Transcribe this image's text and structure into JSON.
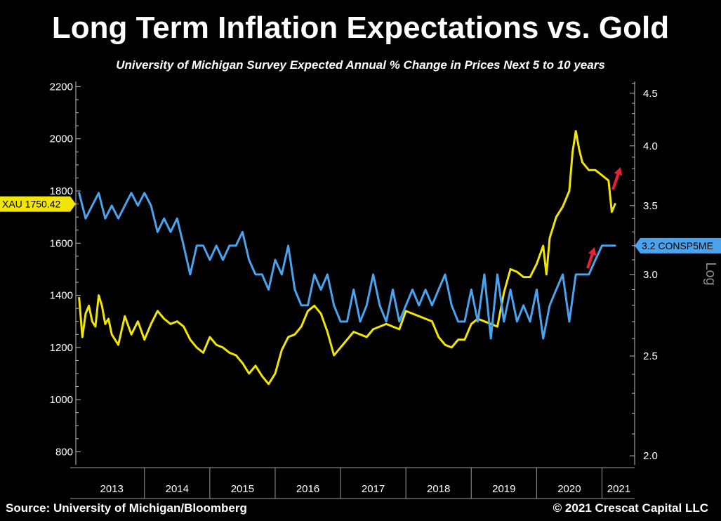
{
  "title": "Long Term Inflation Expectations vs. Gold",
  "subtitle": "University of Michigan Survey Expected Annual % Change in Prices Next 5 to 10 years",
  "source": "Source: University of Michigan/Bloomberg",
  "copyright": "© 2021 Crescat Capital LLC",
  "chart_data": {
    "type": "line",
    "left_axis": {
      "ylim": [
        750,
        2220
      ],
      "ticks": [
        "800",
        "1000",
        "1200",
        "1400",
        "1600",
        "1800",
        "2000",
        "2200"
      ]
    },
    "right_axis": {
      "scale": "log",
      "ylim": [
        1.96,
        4.62
      ],
      "ticks": [
        "2.0",
        "2.5",
        "3.0",
        "3.5",
        "4.0",
        "4.5"
      ],
      "label": "Log"
    },
    "x_axis": {
      "xlim": [
        2012.95,
        2021.5
      ],
      "ticks": [
        "2013",
        "2014",
        "2015",
        "2016",
        "2017",
        "2018",
        "2019",
        "2020",
        "2021"
      ]
    },
    "series": [
      {
        "name": "XAU",
        "axis": "left",
        "color": "#f2e600",
        "last_label": "XAU 1750.42",
        "x": [
          2013.0,
          2013.05,
          2013.1,
          2013.15,
          2013.2,
          2013.25,
          2013.3,
          2013.35,
          2013.4,
          2013.45,
          2013.5,
          2013.6,
          2013.7,
          2013.8,
          2013.9,
          2014.0,
          2014.1,
          2014.2,
          2014.3,
          2014.4,
          2014.5,
          2014.6,
          2014.7,
          2014.8,
          2014.9,
          2015.0,
          2015.1,
          2015.2,
          2015.3,
          2015.4,
          2015.5,
          2015.6,
          2015.7,
          2015.8,
          2015.9,
          2016.0,
          2016.1,
          2016.2,
          2016.3,
          2016.4,
          2016.5,
          2016.6,
          2016.7,
          2016.8,
          2016.9,
          2017.0,
          2017.1,
          2017.2,
          2017.3,
          2017.4,
          2017.5,
          2017.6,
          2017.7,
          2017.8,
          2017.9,
          2018.0,
          2018.1,
          2018.2,
          2018.3,
          2018.4,
          2018.5,
          2018.6,
          2018.7,
          2018.8,
          2018.9,
          2019.0,
          2019.1,
          2019.2,
          2019.3,
          2019.4,
          2019.5,
          2019.6,
          2019.7,
          2019.8,
          2019.9,
          2020.0,
          2020.1,
          2020.15,
          2020.2,
          2020.3,
          2020.4,
          2020.5,
          2020.55,
          2020.6,
          2020.65,
          2020.7,
          2020.8,
          2020.9,
          2021.0,
          2021.1,
          2021.15,
          2021.2
        ],
        "values": [
          1390,
          1240,
          1330,
          1360,
          1300,
          1280,
          1400,
          1360,
          1290,
          1310,
          1250,
          1210,
          1320,
          1250,
          1300,
          1230,
          1290,
          1340,
          1310,
          1290,
          1300,
          1280,
          1230,
          1200,
          1180,
          1240,
          1210,
          1200,
          1180,
          1170,
          1140,
          1100,
          1130,
          1090,
          1060,
          1100,
          1190,
          1240,
          1250,
          1280,
          1340,
          1360,
          1330,
          1260,
          1170,
          1200,
          1230,
          1260,
          1250,
          1240,
          1270,
          1280,
          1290,
          1280,
          1270,
          1340,
          1330,
          1320,
          1310,
          1300,
          1240,
          1210,
          1200,
          1230,
          1230,
          1290,
          1310,
          1300,
          1290,
          1280,
          1410,
          1500,
          1490,
          1470,
          1470,
          1520,
          1590,
          1480,
          1620,
          1700,
          1740,
          1800,
          1950,
          2030,
          1960,
          1910,
          1880,
          1880,
          1860,
          1840,
          1720,
          1750
        ]
      },
      {
        "name": "CONSP5ME",
        "axis": "right",
        "color": "#4aa3ee",
        "last_label": "3.2 CONSP5ME",
        "x": [
          2013.0,
          2013.1,
          2013.2,
          2013.3,
          2013.4,
          2013.5,
          2013.6,
          2013.7,
          2013.8,
          2013.9,
          2014.0,
          2014.1,
          2014.2,
          2014.3,
          2014.4,
          2014.5,
          2014.6,
          2014.7,
          2014.8,
          2014.9,
          2015.0,
          2015.1,
          2015.2,
          2015.3,
          2015.4,
          2015.5,
          2015.6,
          2015.7,
          2015.8,
          2015.9,
          2016.0,
          2016.1,
          2016.2,
          2016.3,
          2016.4,
          2016.5,
          2016.6,
          2016.7,
          2016.8,
          2016.9,
          2017.0,
          2017.1,
          2017.2,
          2017.3,
          2017.4,
          2017.5,
          2017.6,
          2017.7,
          2017.8,
          2017.9,
          2018.0,
          2018.1,
          2018.2,
          2018.3,
          2018.4,
          2018.5,
          2018.6,
          2018.7,
          2018.8,
          2018.9,
          2019.0,
          2019.1,
          2019.2,
          2019.3,
          2019.4,
          2019.5,
          2019.6,
          2019.7,
          2019.8,
          2019.9,
          2020.0,
          2020.1,
          2020.2,
          2020.3,
          2020.4,
          2020.5,
          2020.6,
          2020.7,
          2020.8,
          2020.9,
          2021.0,
          2021.1,
          2021.2
        ],
        "values": [
          3.6,
          3.4,
          3.5,
          3.6,
          3.4,
          3.5,
          3.4,
          3.5,
          3.6,
          3.5,
          3.6,
          3.5,
          3.3,
          3.4,
          3.3,
          3.4,
          3.2,
          3.0,
          3.2,
          3.2,
          3.1,
          3.2,
          3.1,
          3.2,
          3.2,
          3.3,
          3.1,
          3.0,
          3.0,
          2.9,
          3.1,
          3.0,
          3.2,
          2.9,
          2.8,
          2.8,
          3.0,
          2.9,
          3.0,
          2.8,
          2.7,
          2.7,
          2.9,
          2.7,
          2.8,
          3.0,
          2.8,
          2.7,
          2.9,
          2.7,
          2.8,
          2.9,
          2.8,
          2.9,
          2.8,
          2.9,
          3.0,
          2.8,
          2.7,
          2.7,
          2.9,
          2.7,
          3.0,
          2.6,
          3.0,
          2.7,
          2.9,
          2.7,
          2.8,
          2.7,
          2.9,
          2.6,
          2.8,
          2.9,
          3.0,
          2.7,
          3.0,
          3.0,
          3.0,
          3.1,
          3.2,
          3.2,
          3.2
        ]
      }
    ],
    "annotations": [
      {
        "type": "arrow",
        "color": "#e8203a",
        "series": "CONSP5ME",
        "direction": "up"
      },
      {
        "type": "arrow",
        "color": "#e8203a",
        "series": "XAU",
        "direction": "up"
      }
    ],
    "grid": false
  }
}
